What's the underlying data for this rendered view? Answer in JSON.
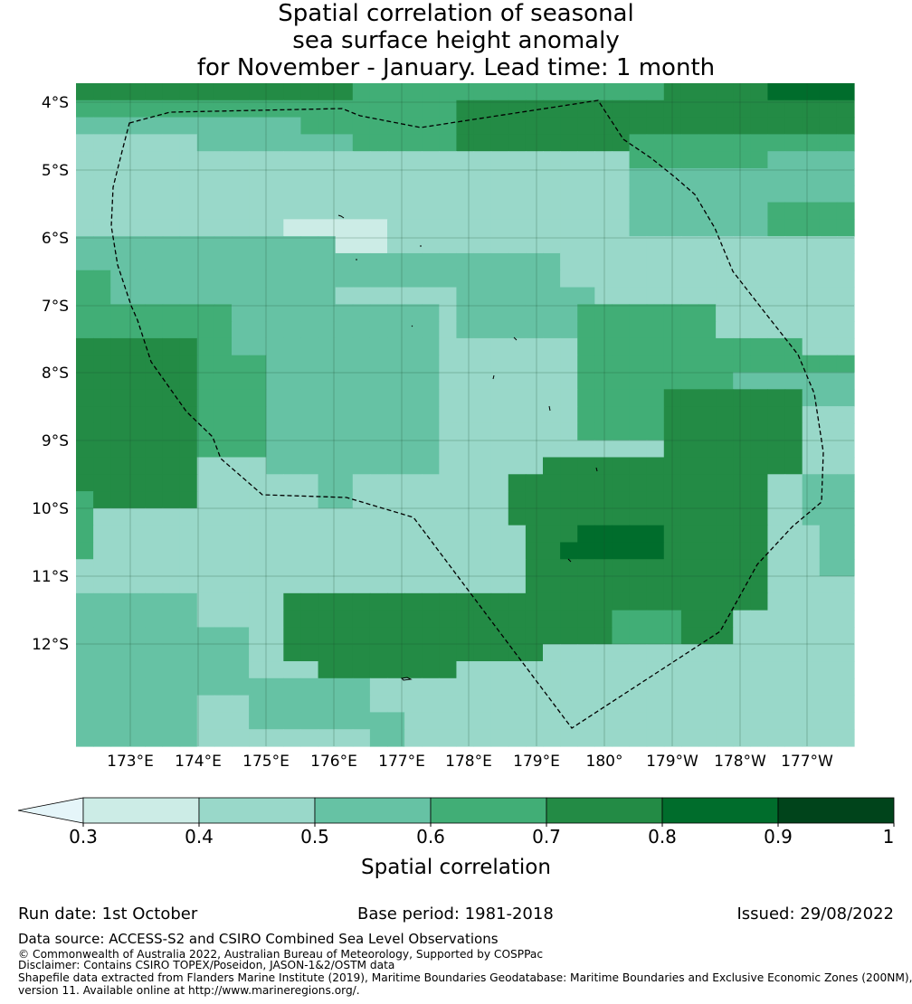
{
  "title": {
    "line1": "Spatial correlation of seasonal",
    "line2": "sea surface height anomaly",
    "line3": "for November - January. Lead time: 1 month"
  },
  "map": {
    "lat_labels": [
      "4°S",
      "5°S",
      "6°S",
      "7°S",
      "8°S",
      "9°S",
      "10°S",
      "11°S",
      "12°S"
    ],
    "lon_labels": [
      "173°E",
      "174°E",
      "175°E",
      "176°E",
      "177°E",
      "178°E",
      "179°E",
      "180°",
      "179°W",
      "178°W",
      "177°W"
    ],
    "boundary_style": "dashed black EEZ outline",
    "gridlines": true
  },
  "colorbar": {
    "label": "Spatial correlation",
    "ticks": [
      "0.3",
      "0.4",
      "0.5",
      "0.6",
      "0.7",
      "0.8",
      "0.9",
      "1"
    ],
    "extend": "min",
    "colors": [
      "#e5f5f9",
      "#ccece6",
      "#99d8c9",
      "#66c2a4",
      "#41ae76",
      "#238b45",
      "#006d2c",
      "#00441b"
    ]
  },
  "footer": {
    "run_date": "Run date: 1st October",
    "base_period": "Base period: 1981-2018",
    "issued": "Issued: 29/08/2022",
    "data_source": "Data source: ACCESS-S2 and CSIRO Combined Sea Level Observations",
    "copyright": "© Commonwealth of Australia 2022, Australian Bureau of Meteorology, Supported by COSPPac",
    "disclaimer": "Disclaimer: Contains CSIRO TOPEX/Poseidon, JASON-1&2/OSTM data",
    "shapefile_line1": "Shapefile data extracted from Flanders Marine Institute (2019), Maritime Boundaries Geodatabase: Maritime Boundaries and Exclusive Economic Zones (200NM),",
    "shapefile_line2": "version 11. Available online at http://www.marineregions.org/."
  },
  "grid_data": {
    "rows": [
      "444445555555555555555555555555555555555555555",
      "444444444444444444444444444444444444444444444",
      "333444444444444444444444444444444444444444444",
      "333333333333333333333333333333333333333333333",
      "222222222222222222222222222222222222222222222",
      "222222222222222222222222222222222222222222222",
      "222222222222222222222222222222222222222222222",
      "222222222222222222222222222222222222222222222",
      "222222222222222222222222222222222222222222222",
      "222222222222222222222222222222222222222222222",
      "222222222222222222222222222222222222222222222",
      "222222222222222222222222222222222222222222222",
      "222222222222222222222222222222222222222222222",
      "222222222222222222222222222222222222222222222",
      "222222222222222222222222222222222222222222222",
      "222222222222222222222222222222222222222222222",
      "222222222222222222222222222222222222222222222",
      "222222222222222222222222222222222222222222222",
      "222222222222222222222222222222222222222222222",
      "222222222222222222222222222222222222222222222",
      "222222222222222222222222222222222222222222222",
      "222222222222222222222222222222222222222222222",
      "222222222222222222222222222222222222222222222",
      "222222222222222222222222222222222222222222222",
      "222222222222222222222222222222222222222222222",
      "222222222222222222222222222222222222222222222",
      "222222222222222222222222222222222222222222222",
      "222222222222222222222222222222222222222222222",
      "222222222222222222222222222222222222222222222",
      "222222222222222222222222222222222222222222222",
      "222222222222222222222222222222222222222222222",
      "222222222222222222222222222222222222222222222",
      "222222222222222222222222222222222222222222222",
      "222222222222222222222222222222222222222222222",
      "222222222222222222222222222222222222222222222",
      "222222222222222222222222222222222222222222222",
      "222222222222222222222222222222222222222222222",
      "222222222222222222222222222222222222222222222",
      "222222222222222222222222222222222222222222222"
    ],
    "overrides": [
      {
        "r": [
          0,
          1
        ],
        "c": [
          0,
          33
        ],
        "v": 5
      },
      {
        "r": [
          0,
          4
        ],
        "c": [
          16,
          34
        ],
        "v": 4
      },
      {
        "r": [
          1,
          4
        ],
        "c": [
          22,
          45
        ],
        "v": 5
      },
      {
        "r": [
          0,
          1
        ],
        "c": [
          40,
          45
        ],
        "v": 6
      },
      {
        "r": [
          2,
          4
        ],
        "c": [
          0,
          13
        ],
        "v": 3
      },
      {
        "r": [
          3,
          6
        ],
        "c": [
          0,
          7
        ],
        "v": 2
      },
      {
        "r": [
          5,
          9
        ],
        "c": [
          6,
          26
        ],
        "v": 2
      },
      {
        "r": [
          6,
          9
        ],
        "c": [
          20,
          31
        ],
        "v": 2
      },
      {
        "r": [
          8,
          9
        ],
        "c": [
          12,
          18
        ],
        "v": 1
      },
      {
        "r": [
          9,
          10
        ],
        "c": [
          14,
          18
        ],
        "v": 1
      },
      {
        "r": [
          9,
          12
        ],
        "c": [
          28,
          34
        ],
        "v": 2
      },
      {
        "r": [
          3,
          5
        ],
        "c": [
          32,
          45
        ],
        "v": 4
      },
      {
        "r": [
          4,
          5
        ],
        "c": [
          40,
          45
        ],
        "v": 3
      },
      {
        "r": [
          5,
          9
        ],
        "c": [
          32,
          45
        ],
        "v": 3
      },
      {
        "r": [
          7,
          9
        ],
        "c": [
          40,
          45
        ],
        "v": 4
      },
      {
        "r": [
          9,
          13
        ],
        "c": [
          0,
          15
        ],
        "v": 3
      },
      {
        "r": [
          10,
          13
        ],
        "c": [
          4,
          28
        ],
        "v": 3
      },
      {
        "r": [
          12,
          17
        ],
        "c": [
          15,
          23
        ],
        "v": 2
      },
      {
        "r": [
          14,
          17
        ],
        "c": [
          17,
          24
        ],
        "v": 2
      },
      {
        "r": [
          13,
          19
        ],
        "c": [
          9,
          21
        ],
        "v": 3
      },
      {
        "r": [
          12,
          15
        ],
        "c": [
          22,
          30
        ],
        "v": 3
      },
      {
        "r": [
          11,
          14
        ],
        "c": [
          0,
          2
        ],
        "v": 4
      },
      {
        "r": [
          13,
          16
        ],
        "c": [
          0,
          9
        ],
        "v": 4
      },
      {
        "r": [
          15,
          25
        ],
        "c": [
          0,
          7
        ],
        "v": 5
      },
      {
        "r": [
          16,
          22
        ],
        "c": [
          7,
          11
        ],
        "v": 4
      },
      {
        "r": [
          17,
          23
        ],
        "c": [
          11,
          21
        ],
        "v": 3
      },
      {
        "r": [
          20,
          22
        ],
        "c": [
          11,
          17
        ],
        "v": 3
      },
      {
        "r": [
          22,
          25
        ],
        "c": [
          14,
          16
        ],
        "v": 3
      },
      {
        "r": [
          13,
          21
        ],
        "c": [
          29,
          37
        ],
        "v": 4
      },
      {
        "r": [
          15,
          18
        ],
        "c": [
          35,
          45
        ],
        "v": 4
      },
      {
        "r": [
          17,
          19
        ],
        "c": [
          38,
          45
        ],
        "v": 3
      },
      {
        "r": [
          14,
          16
        ],
        "c": [
          42,
          45
        ],
        "v": 2
      },
      {
        "r": [
          18,
          23
        ],
        "c": [
          34,
          42
        ],
        "v": 5
      },
      {
        "r": [
          19,
          21
        ],
        "c": [
          35,
          41
        ],
        "v": 5
      },
      {
        "r": [
          22,
          31
        ],
        "c": [
          27,
          40
        ],
        "v": 5
      },
      {
        "r": [
          23,
          26
        ],
        "c": [
          25,
          38
        ],
        "v": 5
      },
      {
        "r": [
          26,
          33
        ],
        "c": [
          26,
          38
        ],
        "v": 5
      },
      {
        "r": [
          26,
          28
        ],
        "c": [
          29,
          34
        ],
        "v": 6
      },
      {
        "r": [
          27,
          28
        ],
        "c": [
          28,
          33
        ],
        "v": 6
      },
      {
        "r": [
          31,
          33
        ],
        "c": [
          31,
          35
        ],
        "v": 4
      },
      {
        "r": [
          30,
          34
        ],
        "c": [
          12,
          27
        ],
        "v": 5
      },
      {
        "r": [
          33,
          35
        ],
        "c": [
          14,
          22
        ],
        "v": 5
      },
      {
        "r": [
          30,
          39
        ],
        "c": [
          0,
          7
        ],
        "v": 3
      },
      {
        "r": [
          32,
          36
        ],
        "c": [
          7,
          10
        ],
        "v": 3
      },
      {
        "r": [
          35,
          38
        ],
        "c": [
          10,
          17
        ],
        "v": 3
      },
      {
        "r": [
          37,
          39
        ],
        "c": [
          17,
          19
        ],
        "v": 3
      },
      {
        "r": [
          23,
          26
        ],
        "c": [
          42,
          45
        ],
        "v": 3
      },
      {
        "r": [
          25,
          29
        ],
        "c": [
          44,
          45
        ],
        "v": 3
      },
      {
        "r": [
          26,
          29
        ],
        "c": [
          43,
          45
        ],
        "v": 3
      },
      {
        "r": [
          24,
          28
        ],
        "c": [
          0,
          1
        ],
        "v": 4
      }
    ]
  }
}
